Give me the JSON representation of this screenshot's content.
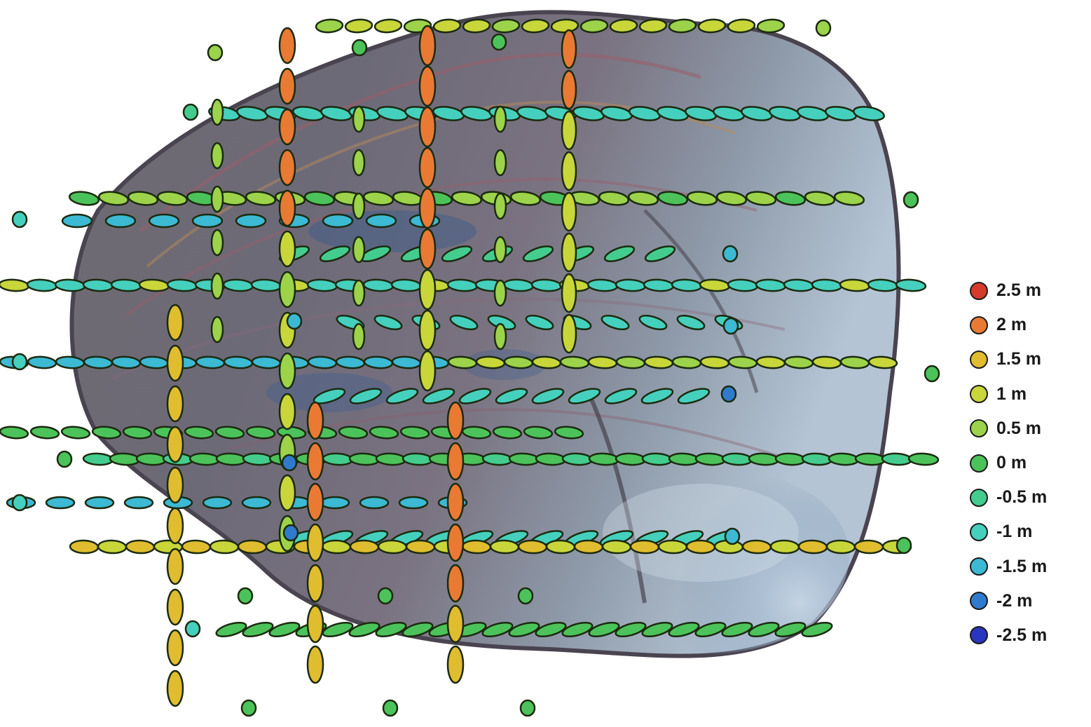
{
  "legend": {
    "items": [
      {
        "label": "2.5 m",
        "value": 2.5,
        "color": "#d63a2a"
      },
      {
        "label": "2 m",
        "value": 2.0,
        "color": "#ea7a33"
      },
      {
        "label": "1.5 m",
        "value": 1.5,
        "color": "#e0bd2e"
      },
      {
        "label": "1 m",
        "value": 1.0,
        "color": "#c9d63a"
      },
      {
        "label": "0.5 m",
        "value": 0.5,
        "color": "#9cd34a"
      },
      {
        "label": "0 m",
        "value": 0.0,
        "color": "#4cc35a"
      },
      {
        "label": "-0.5 m",
        "value": -0.5,
        "color": "#44cc8e"
      },
      {
        "label": "-1 m",
        "value": -1.0,
        "color": "#45d0bd"
      },
      {
        "label": "-1.5 m",
        "value": -1.5,
        "color": "#3cb9d3"
      },
      {
        "label": "-2 m",
        "value": -2.0,
        "color": "#2f7acd"
      },
      {
        "label": "-2.5 m",
        "value": -2.5,
        "color": "#2a36c0"
      }
    ]
  }
}
